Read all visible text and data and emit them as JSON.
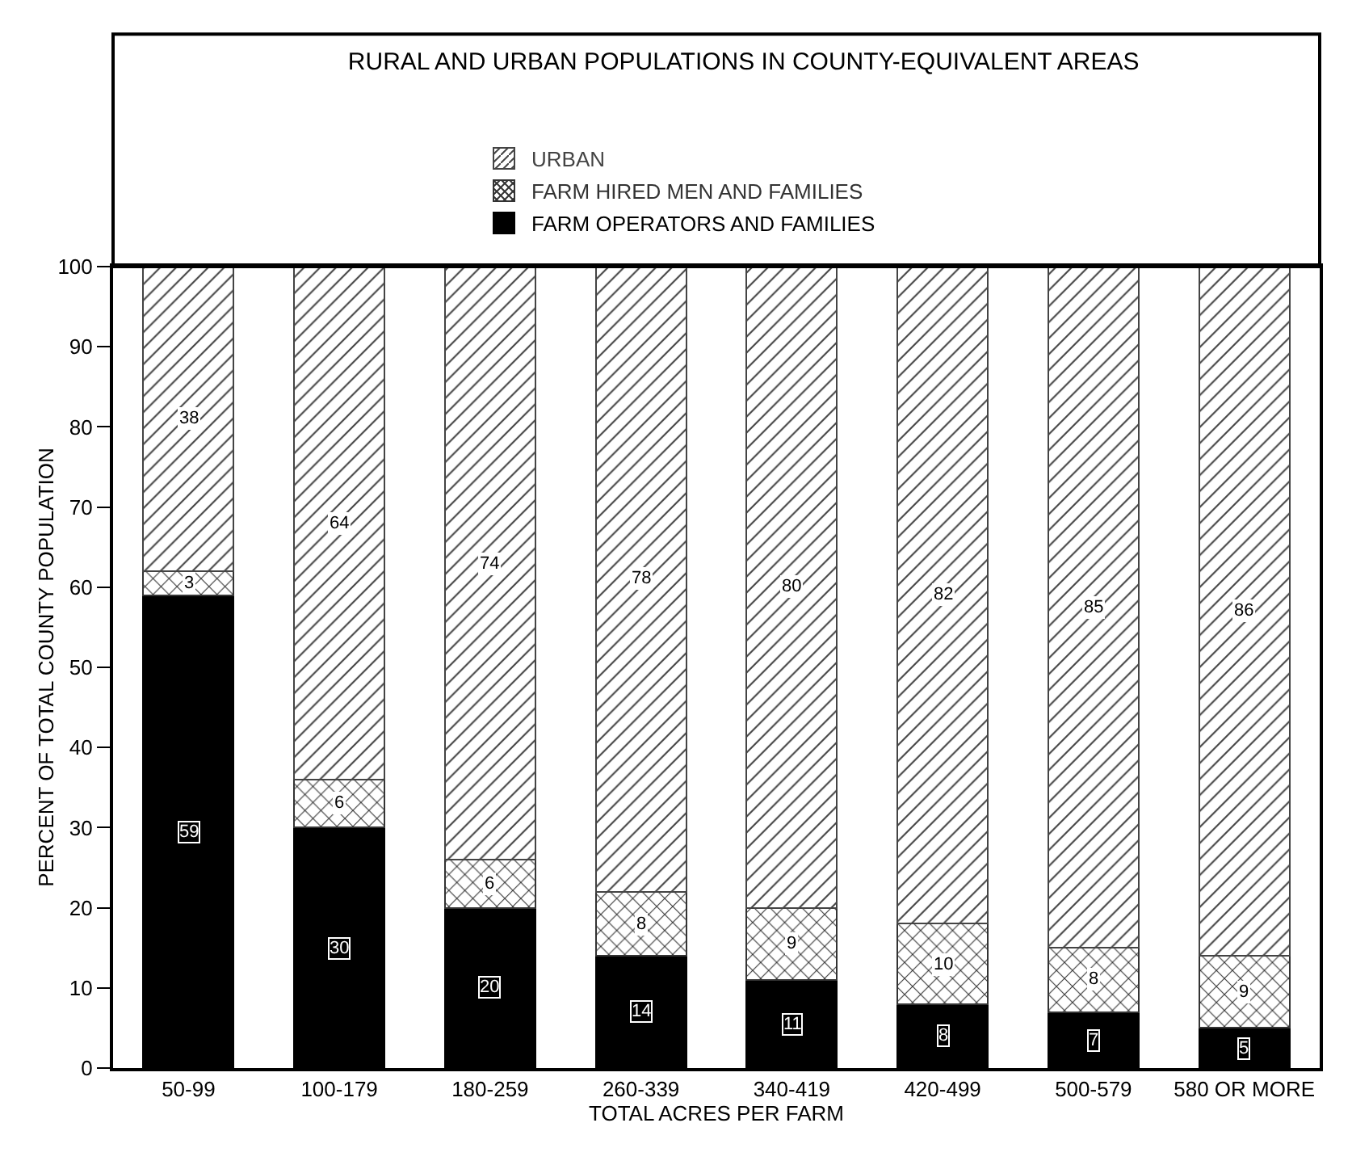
{
  "chart_data": {
    "type": "bar",
    "title": "RURAL AND URBAN POPULATIONS IN COUNTY-EQUIVALENT AREAS",
    "xlabel": "TOTAL ACRES PER FARM",
    "ylabel": "PERCENT OF TOTAL COUNTY POPULATION",
    "categories": [
      "50-99",
      "100-179",
      "180-259",
      "260-339",
      "340-419",
      "420-499",
      "500-579",
      "580 OR MORE"
    ],
    "stacked": true,
    "data_labels": true,
    "legend": "top",
    "grid": false,
    "ylim": [
      0,
      100
    ],
    "yticks": [
      0,
      10,
      20,
      30,
      40,
      50,
      60,
      70,
      80,
      90,
      100
    ],
    "series": [
      {
        "name": "FARM OPERATORS AND FAMILIES",
        "color": "#000000",
        "values": [
          59,
          30,
          20,
          14,
          11,
          8,
          7,
          5
        ]
      },
      {
        "name": "FARM HIRED MEN AND FAMILIES",
        "color": "#333333",
        "values": [
          3,
          6,
          6,
          8,
          9,
          10,
          8,
          9
        ]
      },
      {
        "name": "URBAN",
        "color": "#444444",
        "values": [
          38,
          64,
          74,
          78,
          80,
          82,
          85,
          86
        ]
      }
    ]
  }
}
